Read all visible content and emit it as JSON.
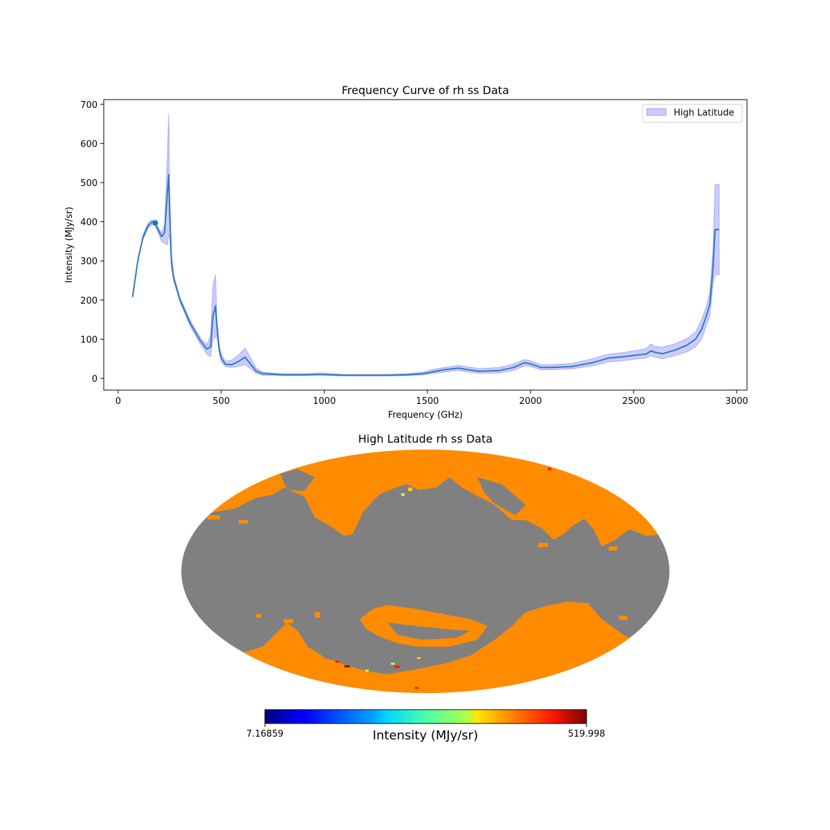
{
  "chart_data": [
    {
      "type": "line",
      "title": "Frequency Curve of rh ss Data",
      "xlabel": "Frequency (GHz)",
      "ylabel": "Intensity (MJy/sr)",
      "xlim": [
        -70,
        3050
      ],
      "ylim": [
        -30,
        712
      ],
      "xticks": [
        "0",
        "500",
        "1000",
        "1500",
        "2000",
        "2500",
        "3000"
      ],
      "xtick_values": [
        0,
        500,
        1000,
        1500,
        2000,
        2500,
        3000
      ],
      "yticks": [
        "0",
        "100",
        "200",
        "300",
        "400",
        "500",
        "600",
        "700"
      ],
      "ytick_values": [
        0,
        100,
        200,
        300,
        400,
        500,
        600,
        700
      ],
      "legend": {
        "entries": [
          "High Latitude"
        ],
        "placement": "upper right"
      },
      "colors": {
        "line": "#2f7bb9",
        "band": "#0000ff",
        "marker": "#1f77b4"
      },
      "marker_point": {
        "x": 180,
        "y": 397
      },
      "series": [
        {
          "x": [
            70,
            95,
            120,
            145,
            165,
            180,
            195,
            210,
            225,
            238,
            245,
            250,
            258,
            270,
            300,
            350,
            400,
            430,
            448,
            460,
            472,
            478,
            490,
            500,
            520,
            550,
            580,
            615,
            640,
            670,
            700,
            800,
            900,
            980,
            1100,
            1200,
            1300,
            1400,
            1480,
            1520,
            1580,
            1650,
            1700,
            1750,
            1850,
            1920,
            1970,
            2000,
            2050,
            2100,
            2200,
            2300,
            2380,
            2450,
            2520,
            2560,
            2585,
            2600,
            2640,
            2700,
            2760,
            2800,
            2830,
            2850,
            2870,
            2885,
            2895,
            2905,
            2915
          ],
          "mean": [
            208,
            300,
            360,
            390,
            400,
            395,
            378,
            362,
            372,
            470,
            520,
            420,
            300,
            255,
            200,
            140,
            95,
            75,
            80,
            160,
            185,
            140,
            75,
            52,
            36,
            35,
            42,
            54,
            38,
            18,
            12,
            9,
            9,
            10,
            8,
            8,
            8,
            9,
            12,
            16,
            22,
            26,
            22,
            18,
            20,
            28,
            40,
            37,
            28,
            28,
            30,
            40,
            52,
            55,
            60,
            62,
            70,
            67,
            63,
            72,
            85,
            100,
            125,
            155,
            190,
            280,
            380,
            380,
            380
          ],
          "upper": [
            210,
            303,
            366,
            397,
            405,
            400,
            385,
            372,
            390,
            560,
            675,
            480,
            320,
            263,
            206,
            148,
            103,
            86,
            110,
            240,
            265,
            165,
            85,
            62,
            44,
            46,
            58,
            77,
            55,
            26,
            16,
            12,
            12,
            14,
            10,
            10,
            10,
            12,
            16,
            22,
            28,
            33,
            29,
            25,
            28,
            37,
            48,
            45,
            35,
            35,
            38,
            50,
            62,
            66,
            72,
            76,
            88,
            82,
            80,
            88,
            102,
            118,
            150,
            180,
            220,
            330,
            495,
            495,
            495
          ],
          "lower": [
            206,
            297,
            354,
            383,
            393,
            390,
            371,
            350,
            345,
            340,
            365,
            360,
            280,
            247,
            194,
            132,
            86,
            62,
            55,
            100,
            105,
            110,
            65,
            42,
            30,
            28,
            30,
            35,
            26,
            12,
            8,
            7,
            7,
            8,
            6,
            6,
            6,
            7,
            9,
            12,
            16,
            20,
            16,
            13,
            14,
            20,
            32,
            30,
            22,
            22,
            24,
            32,
            42,
            45,
            50,
            52,
            58,
            55,
            50,
            58,
            68,
            80,
            100,
            130,
            160,
            240,
            265,
            265,
            265
          ]
        }
      ]
    },
    {
      "type": "heatmap",
      "title": "High Latitude rh ss Data",
      "projection": "mollweide",
      "colorbar": {
        "min_label": "7.16859",
        "max_label": "519.998",
        "label": "Intensity (MJy/sr)",
        "colormap": "jet"
      },
      "colors": {
        "masked": "#808080",
        "dominant": "#ff8c00"
      }
    }
  ]
}
